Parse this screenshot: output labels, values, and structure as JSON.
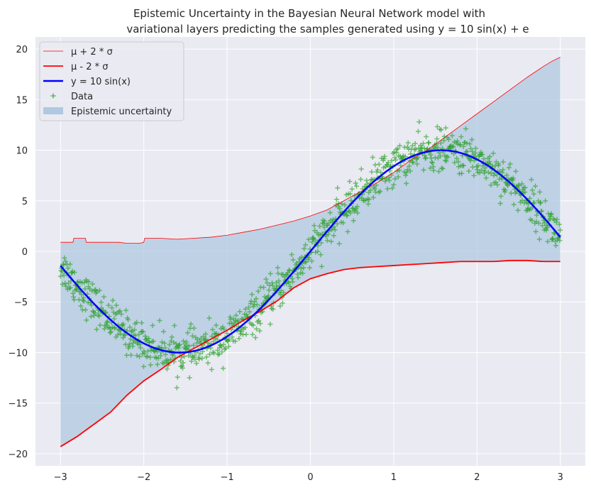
{
  "chart_data": {
    "type": "line",
    "title_line1": "Epistemic Uncertainty in the Bayesian Neural Network model with",
    "title_line2": "variational layers predicting the samples generated using y = 10 sin(x) + e",
    "xlabel": "",
    "ylabel": "",
    "xlim": [
      -3.3,
      3.3
    ],
    "ylim": [
      -21.2,
      21.2
    ],
    "xticks": [
      -3,
      -2,
      -1,
      0,
      1,
      2,
      3
    ],
    "yticks": [
      -20,
      -15,
      -10,
      -5,
      0,
      5,
      10,
      15,
      20
    ],
    "grid": true,
    "legend_position": "top-left",
    "legend": [
      {
        "label": "μ + 2 * σ",
        "kind": "thin-line",
        "color": "#ff0000"
      },
      {
        "label": "μ - 2 * σ",
        "kind": "line",
        "color": "#ff0000"
      },
      {
        "label": "y = 10 sin(x)",
        "kind": "thick-line",
        "color": "#0000ff"
      },
      {
        "label": "Data",
        "kind": "marker",
        "color": "#2ca02c"
      },
      {
        "label": "Epistemic uncertainty",
        "kind": "patch",
        "color": "#b0c8e0"
      }
    ],
    "series": [
      {
        "id": "upper",
        "color": "#ff0000",
        "x": [
          -3.0,
          -2.85,
          -2.84,
          -2.7,
          -2.69,
          -2.4,
          -2.3,
          -2.2,
          -2.05,
          -2.0,
          -1.99,
          -1.8,
          -1.6,
          -1.4,
          -1.2,
          -1.0,
          -0.8,
          -0.6,
          -0.4,
          -0.2,
          0.0,
          0.2,
          0.4,
          0.6,
          0.8,
          1.0,
          1.2,
          1.4,
          1.6,
          1.8,
          2.0,
          2.2,
          2.4,
          2.6,
          2.8,
          2.9,
          3.0
        ],
        "y": [
          0.9,
          0.9,
          1.3,
          1.3,
          0.9,
          0.9,
          0.9,
          0.8,
          0.8,
          0.9,
          1.3,
          1.3,
          1.2,
          1.3,
          1.4,
          1.6,
          1.9,
          2.2,
          2.6,
          3.0,
          3.5,
          4.1,
          5.0,
          5.9,
          6.8,
          7.8,
          9.0,
          10.0,
          11.2,
          12.4,
          13.6,
          14.8,
          16.0,
          17.2,
          18.3,
          18.8,
          19.2
        ]
      },
      {
        "id": "lower",
        "color": "#ff0000",
        "x": [
          -3.0,
          -2.8,
          -2.6,
          -2.4,
          -2.2,
          -2.0,
          -1.8,
          -1.6,
          -1.4,
          -1.2,
          -1.0,
          -0.8,
          -0.6,
          -0.4,
          -0.2,
          0.0,
          0.2,
          0.4,
          0.6,
          0.8,
          1.0,
          1.2,
          1.4,
          1.6,
          1.8,
          2.0,
          2.2,
          2.4,
          2.6,
          2.8,
          3.0
        ],
        "y": [
          -19.3,
          -18.3,
          -17.1,
          -15.9,
          -14.2,
          -12.8,
          -11.7,
          -10.5,
          -9.6,
          -8.7,
          -7.8,
          -6.8,
          -5.9,
          -4.9,
          -3.6,
          -2.7,
          -2.2,
          -1.8,
          -1.6,
          -1.5,
          -1.4,
          -1.3,
          -1.2,
          -1.1,
          -1.0,
          -1.0,
          -1.0,
          -0.9,
          -0.9,
          -1.0,
          -1.0
        ]
      },
      {
        "id": "sine",
        "color": "#0000ff",
        "function": "10*sin(x)",
        "x_range": [
          -3.0,
          3.0
        ]
      }
    ],
    "scatter": {
      "name": "Data",
      "marker": "+",
      "color": "#2ca02c",
      "n_points": 1000,
      "x_range": [
        -3.0,
        3.0
      ],
      "y_function": "10*sin(x) + e",
      "noise_sd": 1.0
    },
    "fill": {
      "name": "Epistemic uncertainty",
      "color": "#b0c8e0",
      "between": [
        "lower",
        "upper"
      ]
    }
  }
}
